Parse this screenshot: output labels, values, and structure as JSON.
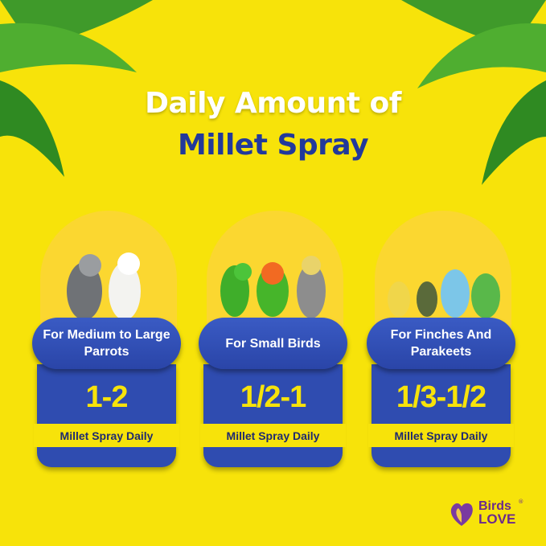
{
  "title": {
    "line1": "Daily Amount of",
    "line2": "Millet Spray"
  },
  "colors": {
    "background": "#f7e30a",
    "navy": "#22399b",
    "card": "#2f4cb0",
    "logo": "#6b2a8c"
  },
  "cards": [
    {
      "heading": "For Medium to Large Parrots",
      "amount": "1-2",
      "unit": "Millet Spray Daily"
    },
    {
      "heading": "For Small Birds",
      "amount": "1/2-1",
      "unit": "Millet Spray Daily"
    },
    {
      "heading": "For Finches And Parakeets",
      "amount": "1/3-1/2",
      "unit": "Millet Spray Daily"
    }
  ],
  "logo": {
    "line1": "Birds",
    "line2": "LOVE",
    "mark": "®"
  }
}
